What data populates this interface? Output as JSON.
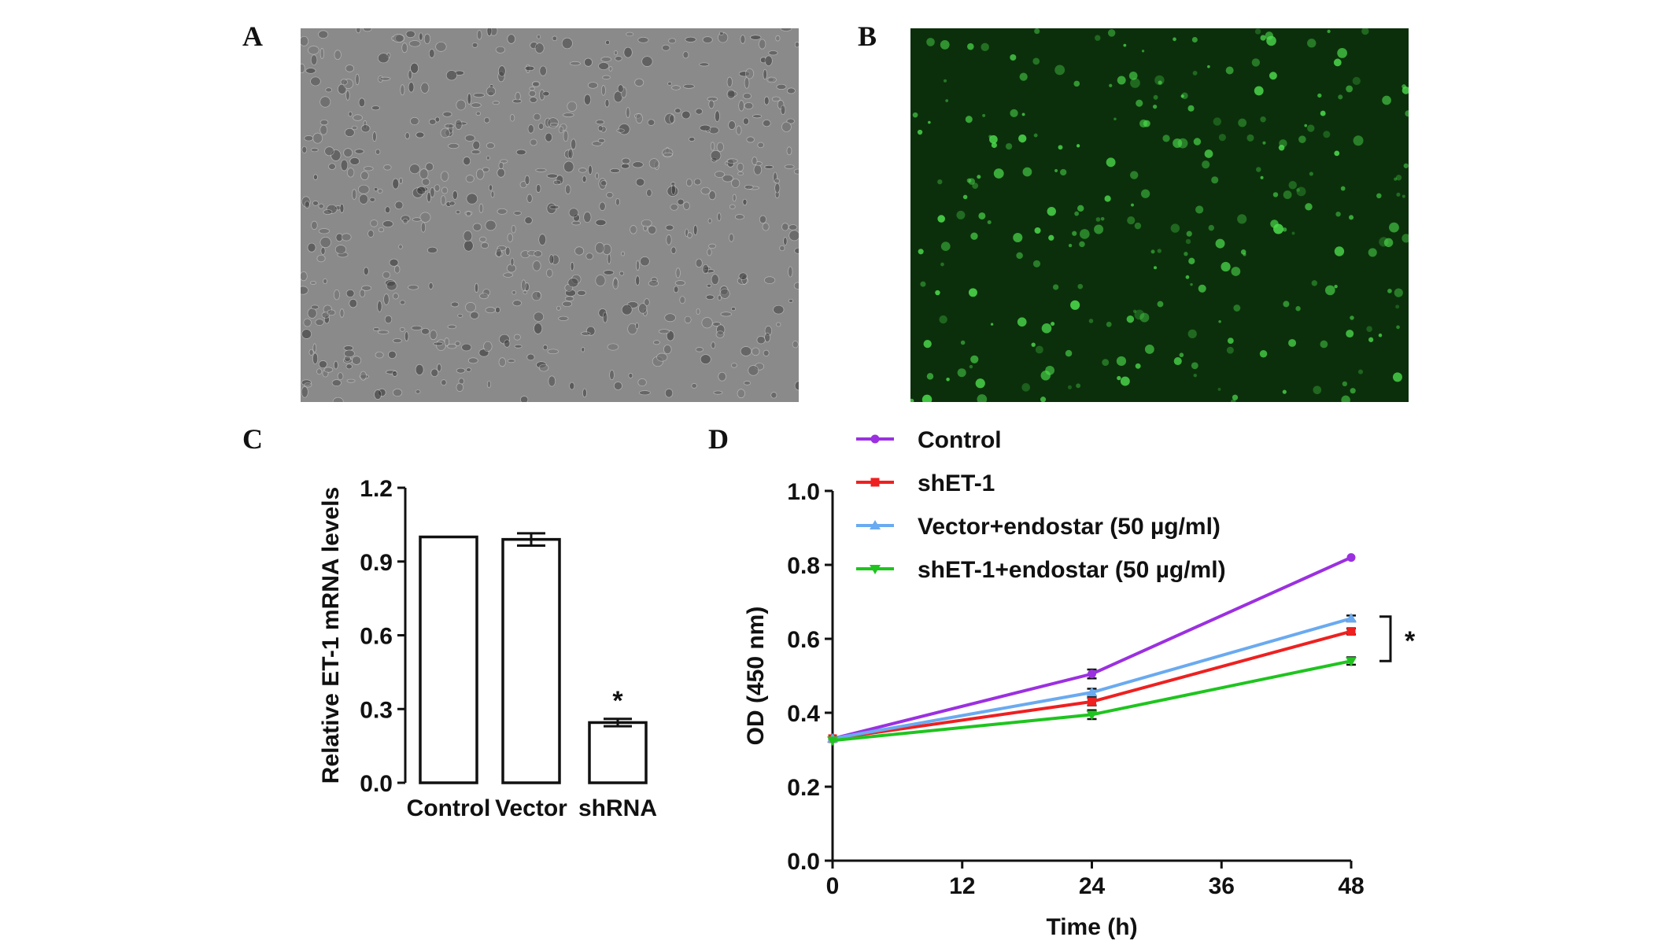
{
  "panels": {
    "a": {
      "letter": "A",
      "description": "brightfield microscopy image of cells"
    },
    "b": {
      "letter": "B",
      "description": "green fluorescence microscopy image of cells"
    },
    "c": {
      "letter": "C"
    },
    "d": {
      "letter": "D"
    }
  },
  "colors": {
    "brightfield_bg": "#8a8a8a",
    "fluorescence_bg": "#0b2f0b",
    "fluorescence_cell": "#4ee04e",
    "axis": "#111111",
    "control": "#9b30e0",
    "shET1": "#ee2020",
    "vector_endostar": "#6aaaf0",
    "shET1_endostar": "#1fc41f"
  },
  "chart_data": [
    {
      "panel": "C",
      "type": "bar",
      "categories": [
        "Control",
        "Vector",
        "shRNA"
      ],
      "values": [
        1.0,
        0.99,
        0.245
      ],
      "errors": [
        0.0,
        0.025,
        0.015
      ],
      "annotations": [
        {
          "category": "shRNA",
          "text": "*"
        }
      ],
      "xlabel": "",
      "ylabel": "Relative ET-1 mRNA levels",
      "ylim": [
        0,
        1.2
      ],
      "yticks": [
        "0.0",
        "0.3",
        "0.6",
        "0.9",
        "1.2"
      ],
      "grid": false
    },
    {
      "panel": "D",
      "type": "line",
      "x": [
        0,
        24,
        48
      ],
      "series": [
        {
          "name": "Control",
          "values": [
            0.33,
            0.505,
            0.82
          ],
          "errors": [
            0.005,
            0.012,
            0.005
          ],
          "marker": "circle"
        },
        {
          "name": "shET-1",
          "values": [
            0.33,
            0.43,
            0.62
          ],
          "errors": [
            0.005,
            0.01,
            0.008
          ],
          "marker": "square"
        },
        {
          "name": "Vector+endostar (50 µg/ml)",
          "values": [
            0.33,
            0.455,
            0.655
          ],
          "errors": [
            0.005,
            0.01,
            0.008
          ],
          "marker": "triangle-up"
        },
        {
          "name": "shET-1+endostar (50 µg/ml)",
          "values": [
            0.325,
            0.395,
            0.54
          ],
          "errors": [
            0.005,
            0.012,
            0.01
          ],
          "marker": "triangle-down"
        }
      ],
      "annotations": [
        {
          "text": "*",
          "range": [
            0.54,
            0.66
          ],
          "x": 48
        }
      ],
      "xlabel": "Time (h)",
      "ylabel": "OD (450 nm)",
      "xlim": [
        0,
        48
      ],
      "ylim": [
        0,
        1.0
      ],
      "xticks": [
        "0",
        "12",
        "24",
        "36",
        "48"
      ],
      "yticks": [
        "0.0",
        "0.2",
        "0.4",
        "0.6",
        "0.8",
        "1.0"
      ],
      "legend_position": "top",
      "grid": false
    }
  ]
}
